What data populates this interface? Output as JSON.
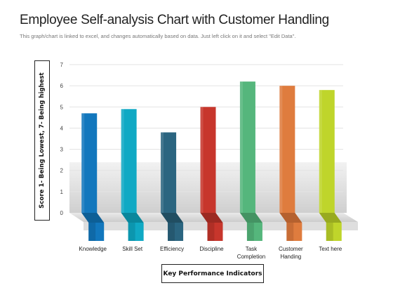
{
  "title": "Employee Self-analysis Chart with Customer Handling",
  "subtitle": "This graph/chart is linked to excel, and changes automatically  based on data. Just left click  on it and select  \"Edit Data\".",
  "chart_data": {
    "type": "bar",
    "ylabel": "Score 1- Being Lowest, 7- Being highest",
    "xlabel": "Key Performance Indicators",
    "ylim": [
      0,
      7
    ],
    "yticks": [
      "0",
      "1",
      "2",
      "3",
      "4",
      "5",
      "6",
      "7"
    ],
    "grid": true,
    "categories": [
      [
        "Knowledge"
      ],
      [
        "Skill Set"
      ],
      [
        "Efficiency"
      ],
      [
        "Discipline"
      ],
      [
        "Task",
        "Completion"
      ],
      [
        "Customer",
        "Handing"
      ],
      [
        "Text here"
      ]
    ],
    "values": [
      4.7,
      4.9,
      3.8,
      5.0,
      6.2,
      6.0,
      5.8
    ],
    "colors": [
      "#1277bd",
      "#10a9c4",
      "#2b6580",
      "#c7362c",
      "#55b67c",
      "#df7c3e",
      "#bfd52b"
    ],
    "shade_colors": [
      "#0d5f96",
      "#0a879c",
      "#214e62",
      "#9c2a22",
      "#449363",
      "#b5612f",
      "#98aa20"
    ]
  }
}
